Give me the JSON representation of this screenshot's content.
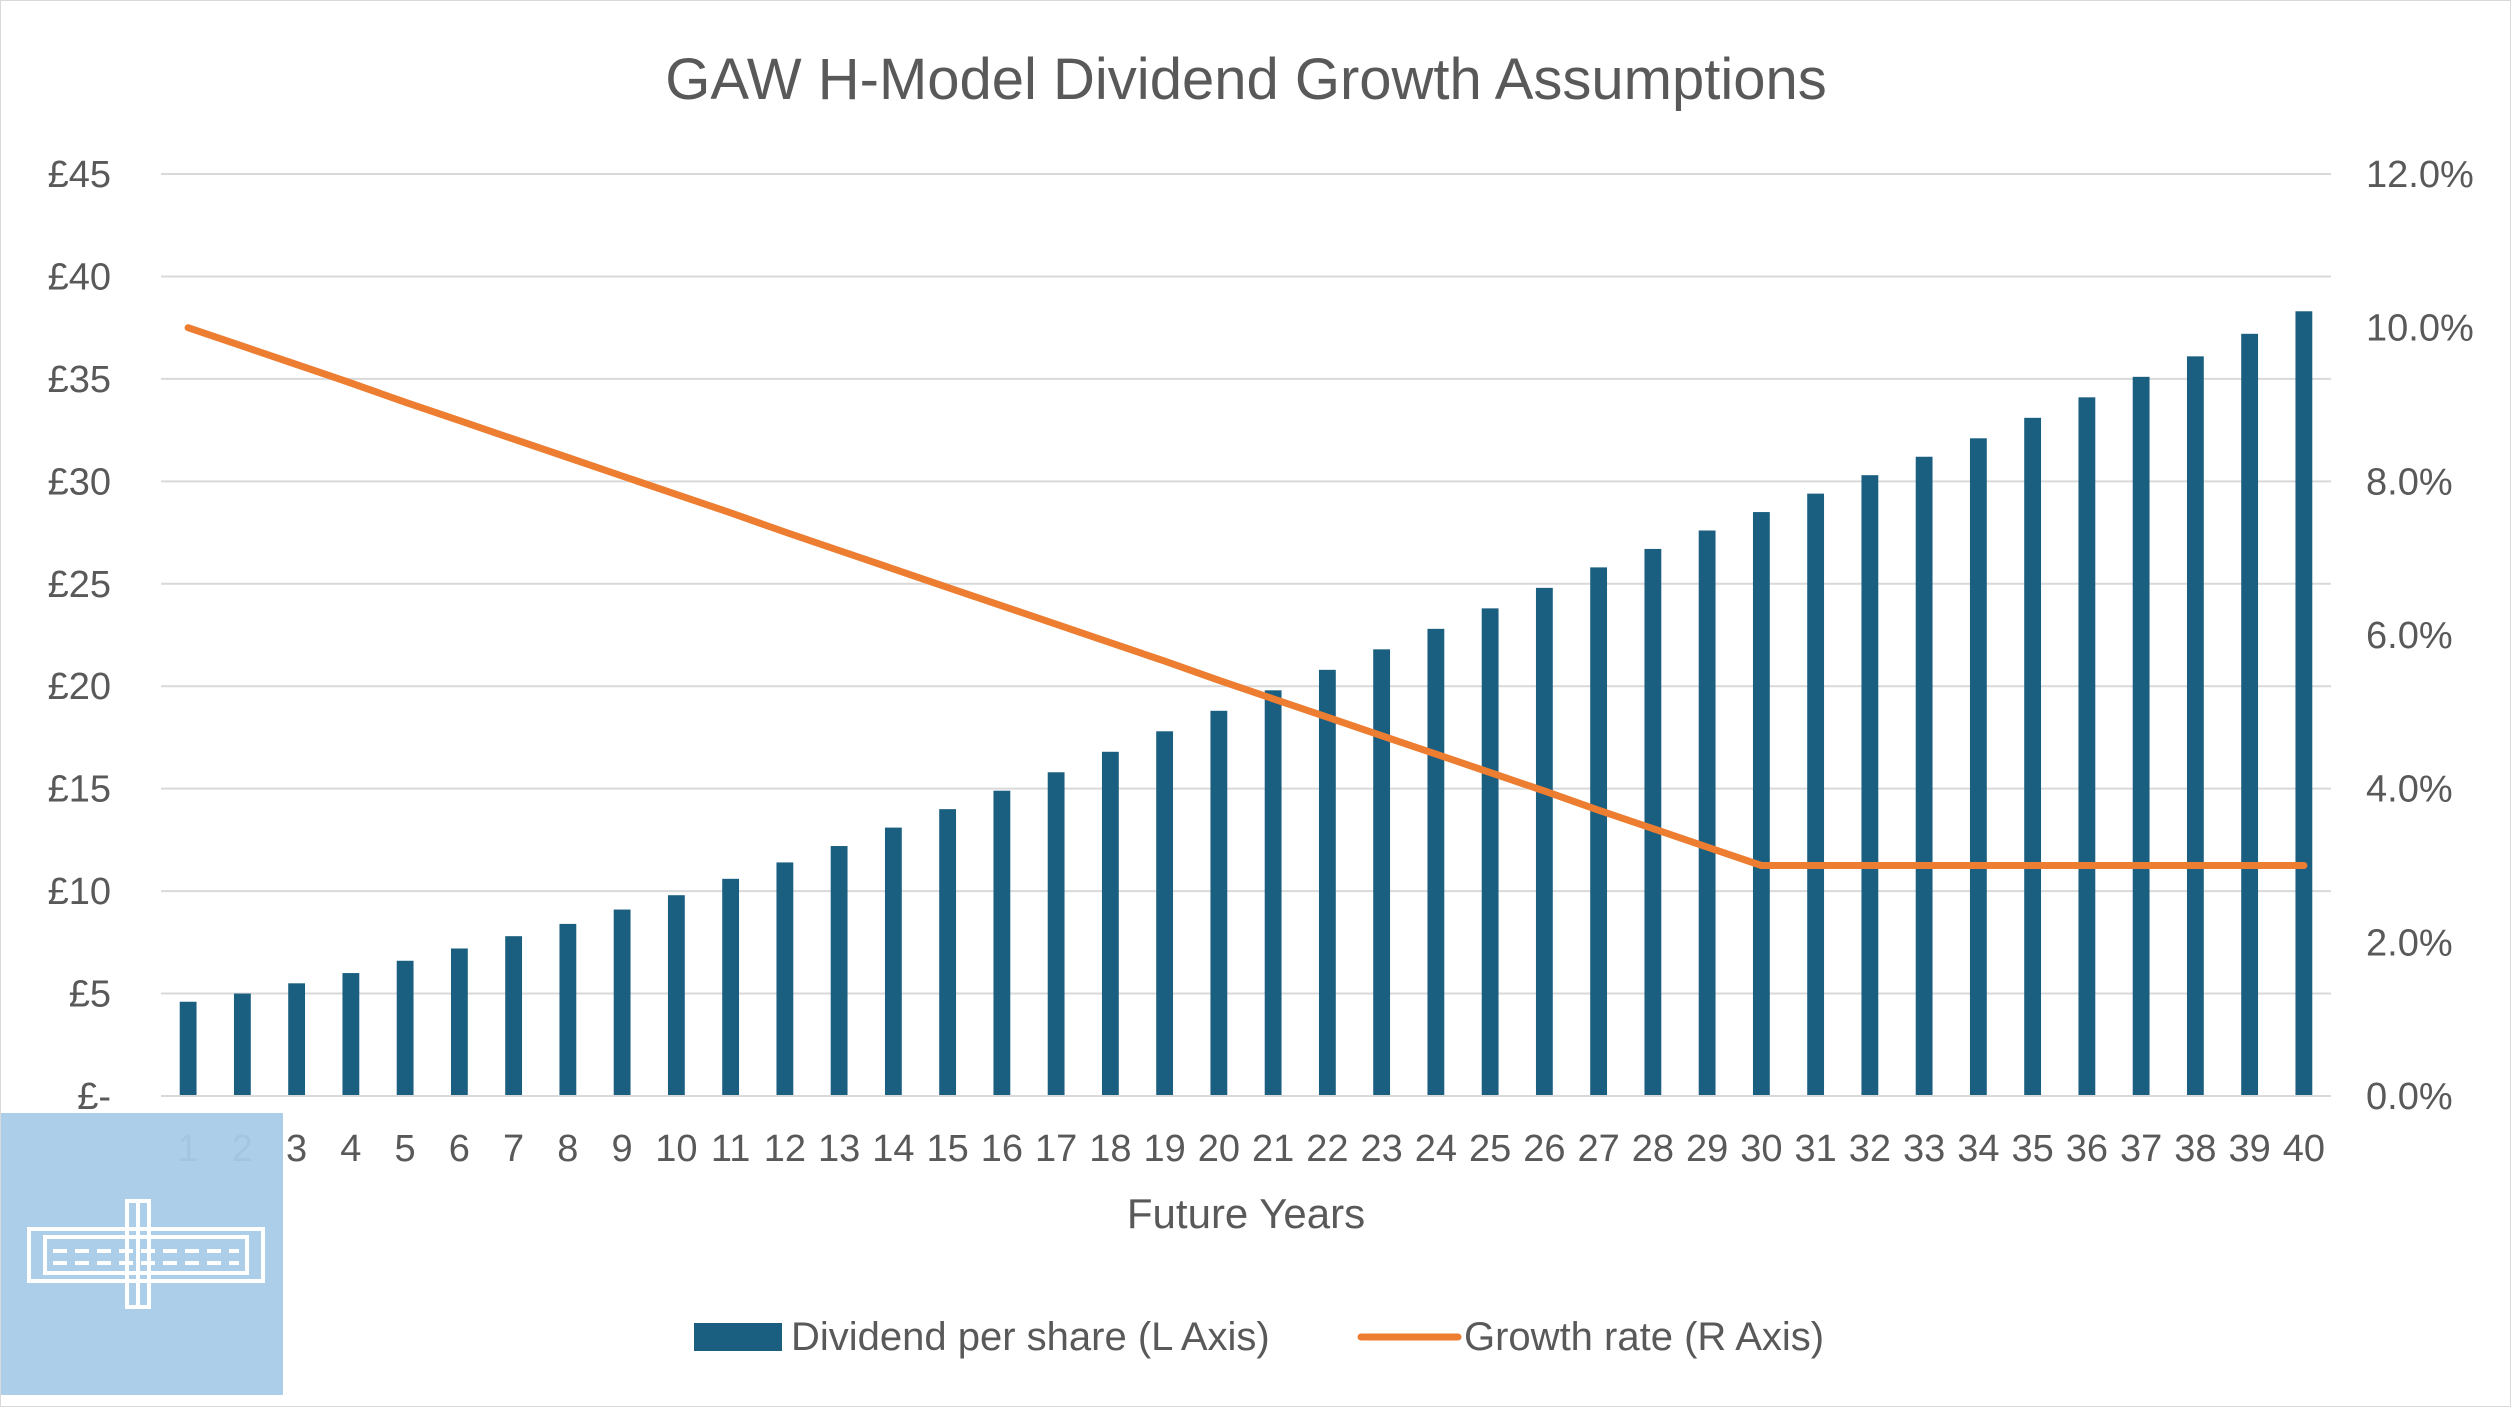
{
  "chart_data": {
    "type": "bar",
    "title": "GAW H-Model Dividend Growth Assumptions",
    "xlabel": "Future Years",
    "ylabel": "",
    "y2label": "",
    "categories": [
      "1",
      "2",
      "3",
      "4",
      "5",
      "6",
      "7",
      "8",
      "9",
      "10",
      "11",
      "12",
      "13",
      "14",
      "15",
      "16",
      "17",
      "18",
      "19",
      "20",
      "21",
      "22",
      "23",
      "24",
      "25",
      "26",
      "27",
      "28",
      "29",
      "30",
      "31",
      "32",
      "33",
      "34",
      "35",
      "36",
      "37",
      "38",
      "39",
      "40"
    ],
    "series": [
      {
        "name": "Dividend per share (L Axis)",
        "type": "bar",
        "axis": "left",
        "color": "#1a5e80",
        "values": [
          4.6,
          5.0,
          5.5,
          6.0,
          6.6,
          7.2,
          7.8,
          8.4,
          9.1,
          9.8,
          10.6,
          11.4,
          12.2,
          13.1,
          14.0,
          14.9,
          15.8,
          16.8,
          17.8,
          18.8,
          19.8,
          20.8,
          21.8,
          22.8,
          23.8,
          24.8,
          25.8,
          26.7,
          27.6,
          28.5,
          29.4,
          30.3,
          31.2,
          32.1,
          33.1,
          34.1,
          35.1,
          36.1,
          37.2,
          38.3
        ]
      },
      {
        "name": "Growth rate (R Axis)",
        "type": "line",
        "axis": "right",
        "color": "#ed7d31",
        "values": [
          10.0,
          9.76,
          9.52,
          9.28,
          9.03,
          8.79,
          8.55,
          8.31,
          8.07,
          7.83,
          7.59,
          7.34,
          7.1,
          6.86,
          6.62,
          6.38,
          6.14,
          5.9,
          5.66,
          5.41,
          5.17,
          4.93,
          4.69,
          4.45,
          4.21,
          3.97,
          3.72,
          3.48,
          3.24,
          3.0,
          3.0,
          3.0,
          3.0,
          3.0,
          3.0,
          3.0,
          3.0,
          3.0,
          3.0,
          3.0
        ]
      }
    ],
    "ylim": [
      0,
      45
    ],
    "yticks": [
      "£-",
      "£5",
      "£10",
      "£15",
      "£20",
      "£25",
      "£30",
      "£35",
      "£40",
      "£45"
    ],
    "y2lim": [
      0,
      12
    ],
    "y2ticks": [
      "0.0%",
      "2.0%",
      "4.0%",
      "6.0%",
      "8.0%",
      "10.0%",
      "12.0%"
    ],
    "grid": true,
    "legend_position": "bottom"
  },
  "colors": {
    "bar": "#1a5e80",
    "line": "#ed7d31",
    "logo_background": "#a9cbe8",
    "logo_stroke": "#ffffff"
  },
  "logo": {
    "icon": "bridge-icon"
  }
}
